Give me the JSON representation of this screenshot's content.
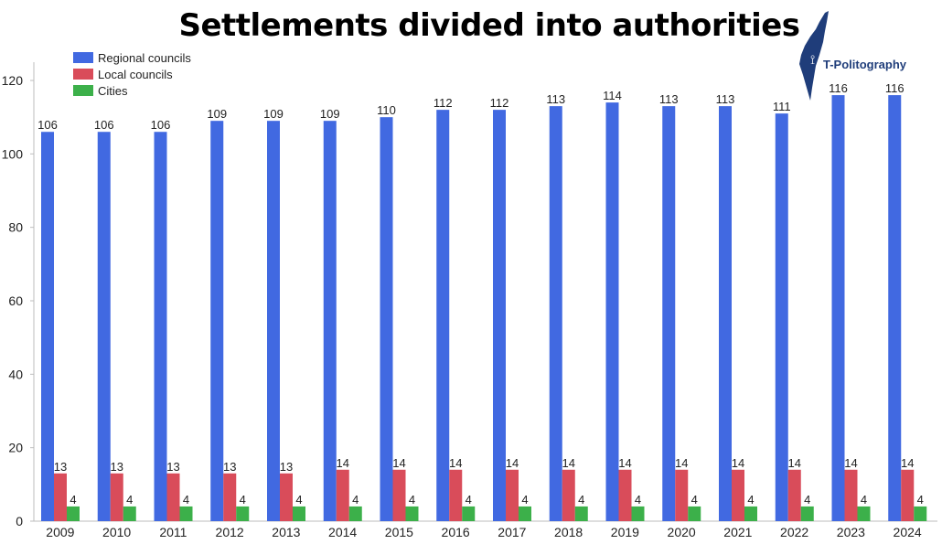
{
  "title": "Settlements divided into authorities",
  "logo": {
    "text": "T-Politography"
  },
  "colors": {
    "regional": "#4169e1",
    "local": "#d94c5a",
    "cities": "#3cb04a",
    "axis": "#bdbdbd",
    "text": "#222222",
    "logo": "#1f3d7a"
  },
  "chart_data": {
    "type": "bar",
    "categories": [
      "2009",
      "2010",
      "2011",
      "2012",
      "2013",
      "2014",
      "2015",
      "2016",
      "2017",
      "2018",
      "2019",
      "2020",
      "2021",
      "2022",
      "2023",
      "2024"
    ],
    "series": [
      {
        "name": "Regional councils",
        "values": [
          106,
          106,
          106,
          109,
          109,
          109,
          110,
          112,
          112,
          113,
          114,
          113,
          113,
          111,
          116,
          116
        ]
      },
      {
        "name": "Local councils",
        "values": [
          13,
          13,
          13,
          13,
          13,
          14,
          14,
          14,
          14,
          14,
          14,
          14,
          14,
          14,
          14,
          14
        ]
      },
      {
        "name": "Cities",
        "values": [
          4,
          4,
          4,
          4,
          4,
          4,
          4,
          4,
          4,
          4,
          4,
          4,
          4,
          4,
          4,
          4
        ]
      }
    ],
    "yticks": [
      "0",
      "20",
      "40",
      "60",
      "80",
      "100",
      "120"
    ],
    "ylim": [
      0,
      120
    ],
    "legend": "top-left",
    "grid": false
  }
}
